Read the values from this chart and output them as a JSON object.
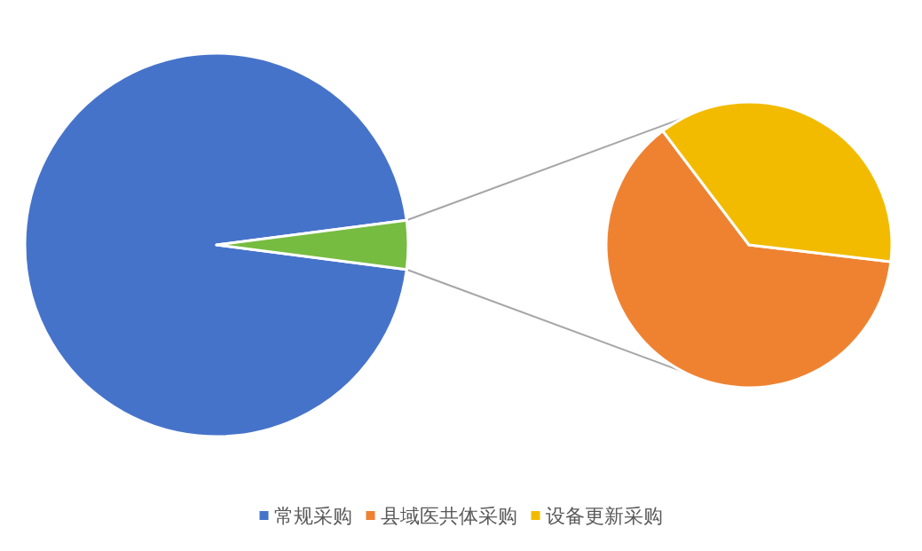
{
  "chart_data": [
    {
      "type": "pie",
      "categories": [
        "常规采购",
        null
      ],
      "values": [
        95.9,
        4.1
      ],
      "colors": [
        "#4673ca",
        "#76bc41"
      ],
      "legend": "bottom"
    },
    {
      "type": "pie",
      "categories": [
        "县域医共体采购",
        "设备更新采购"
      ],
      "values": [
        62.8,
        37.2
      ],
      "colors": [
        "#ef8231",
        "#f2bb00"
      ],
      "legend": "bottom"
    }
  ]
}
